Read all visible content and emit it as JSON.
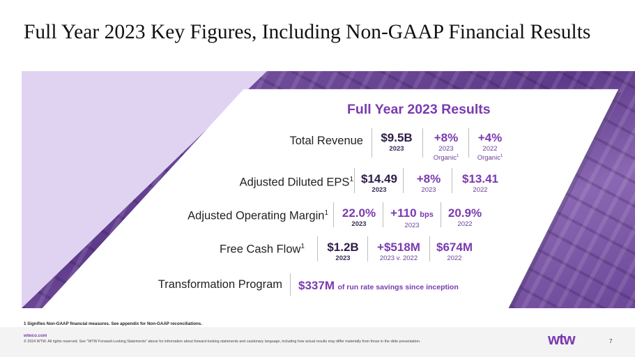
{
  "title": "Full Year 2023 Key Figures, Including Non-GAAP Financial Results",
  "results_heading": "Full Year 2023 Results",
  "rows": [
    {
      "label": "Total Revenue",
      "label_sup": "",
      "metrics": [
        {
          "value": "$9.5B",
          "caption": "2023",
          "caption2": "",
          "caption_sup": ""
        },
        {
          "value": "+8%",
          "caption": "2023",
          "caption2": "Organic",
          "caption_sup": "1"
        },
        {
          "value": "+4%",
          "caption": "2022",
          "caption2": "Organic",
          "caption_sup": "1"
        }
      ]
    },
    {
      "label": "Adjusted Diluted EPS",
      "label_sup": "1",
      "metrics": [
        {
          "value": "$14.49",
          "caption": "2023"
        },
        {
          "value": "+8%",
          "caption": "2023"
        },
        {
          "value": "$13.41",
          "caption": "2022"
        }
      ]
    },
    {
      "label": "Adjusted Operating Margin",
      "label_sup": "1",
      "metrics": [
        {
          "value": "22.0%",
          "caption": "2023"
        },
        {
          "value": "+110",
          "unit": "bps",
          "caption": "2023"
        },
        {
          "value": "20.9%",
          "caption": "2022"
        }
      ]
    },
    {
      "label": "Free Cash Flow",
      "label_sup": "1",
      "metrics": [
        {
          "value": "$1.2B",
          "caption": "2023"
        },
        {
          "value": "+$518M",
          "caption": "2023 v. 2022"
        },
        {
          "value": "$674M",
          "caption": "2022"
        }
      ]
    },
    {
      "label": "Transformation Program",
      "label_sup": "",
      "value": "$337M",
      "value_suffix": "of run rate savings since inception"
    }
  ],
  "footnote": "1 Signifies Non-GAAP financial measures. See appendix for Non-GAAP reconciliations.",
  "footer": {
    "url": "wtwco.com",
    "legal": "© 2024 WTW. All rights reserved. See \"WTW Forward-Looking Statements\" above for information about forward-looking statements and cautionary language, including how actual results may differ materially from those in the slide presentation.",
    "logo": "wtw",
    "page_number": "7"
  },
  "colors": {
    "accent": "#7a3ab0",
    "band": "#e0d3f2",
    "dark": "#2e1c48"
  }
}
